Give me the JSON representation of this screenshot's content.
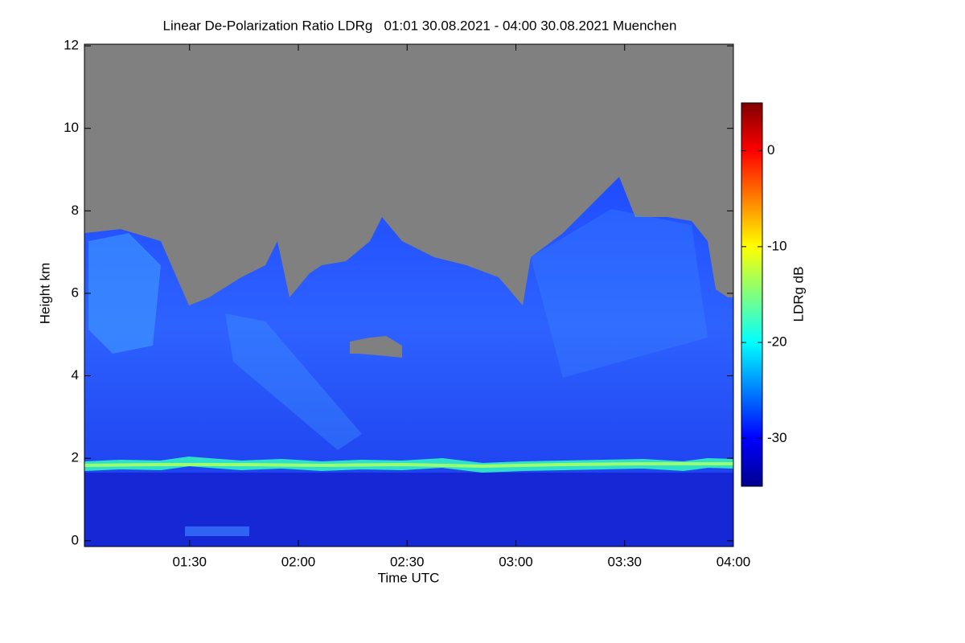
{
  "chart_data": {
    "type": "heatmap",
    "title": "Linear De-Polarization Ratio LDRg   01:01 30.08.2021 - 04:00 30.08.2021 Muenchen",
    "xlabel": "Time UTC",
    "ylabel": "Height km",
    "xlim": [
      61,
      240
    ],
    "xticks": [
      {
        "value": 90,
        "label": "01:30"
      },
      {
        "value": 120,
        "label": "02:00"
      },
      {
        "value": 150,
        "label": "02:30"
      },
      {
        "value": 180,
        "label": "03:00"
      },
      {
        "value": 210,
        "label": "03:30"
      },
      {
        "value": 240,
        "label": "04:00"
      }
    ],
    "ylim": [
      -0.14,
      12.04
    ],
    "yticks": [
      0,
      2,
      4,
      6,
      8,
      10,
      12
    ],
    "colorbar": {
      "label": "LDRg dB",
      "lim": [
        -35,
        5
      ],
      "ticks": [
        0,
        -10,
        -20,
        -30
      ]
    }
  }
}
